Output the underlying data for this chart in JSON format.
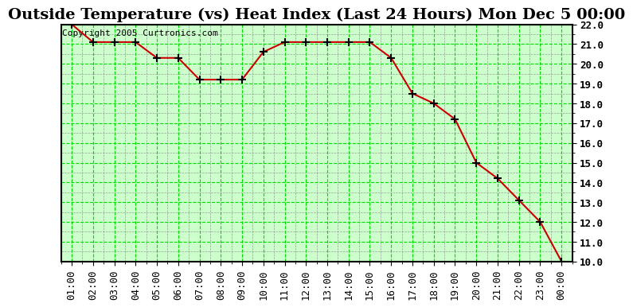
{
  "title": "Outside Temperature (vs) Heat Index (Last 24 Hours) Mon Dec 5 00:00",
  "copyright": "Copyright 2005 Curtronics.com",
  "x_labels": [
    "01:00",
    "02:00",
    "03:00",
    "04:00",
    "05:00",
    "06:00",
    "07:00",
    "08:00",
    "09:00",
    "10:00",
    "11:00",
    "12:00",
    "13:00",
    "14:00",
    "15:00",
    "16:00",
    "17:00",
    "18:00",
    "19:00",
    "20:00",
    "21:00",
    "22:00",
    "23:00",
    "00:00"
  ],
  "y_values": [
    22.0,
    21.1,
    21.1,
    21.1,
    20.3,
    20.3,
    19.2,
    19.2,
    19.2,
    20.6,
    21.1,
    21.1,
    21.1,
    21.1,
    21.1,
    20.3,
    18.5,
    18.0,
    17.2,
    15.0,
    14.2,
    13.1,
    12.0,
    10.0
  ],
  "ylim_min": 10.0,
  "ylim_max": 22.0,
  "ytick_step": 1.0,
  "bg_color": "#ffffff",
  "plot_bg_color": "#ccffcc",
  "grid_major_color": "#00dd00",
  "grid_minor_color": "#888888",
  "line_color": "#cc0000",
  "marker_color": "#cc0000",
  "marker_edge_color": "#000000",
  "title_fontsize": 14,
  "tick_fontsize": 9,
  "copyright_fontsize": 8
}
